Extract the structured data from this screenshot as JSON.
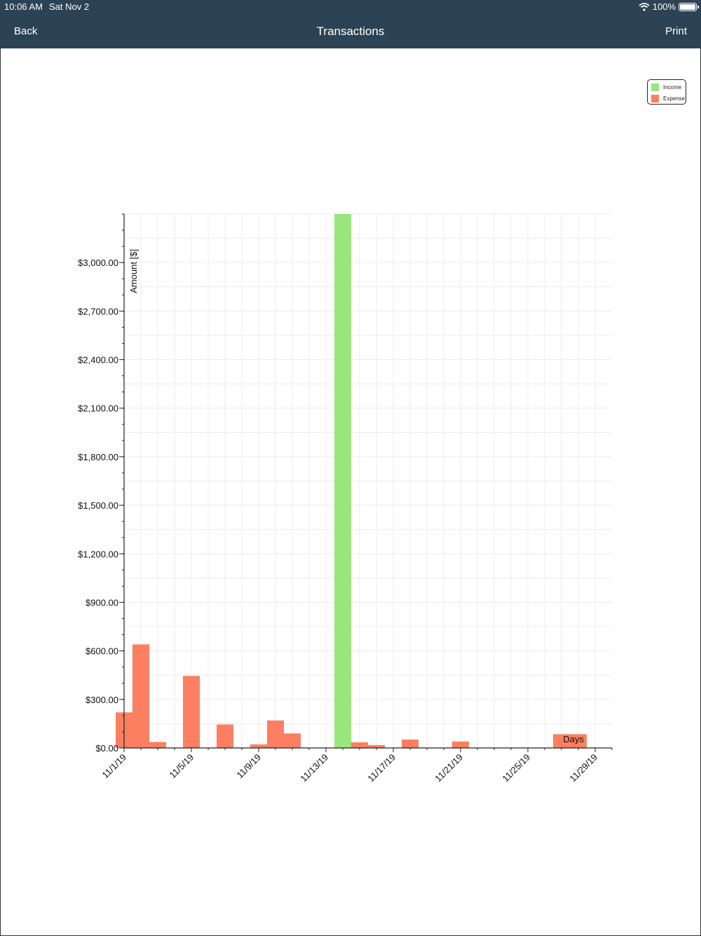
{
  "status": {
    "time": "10:06 AM",
    "date": "Sat Nov 2",
    "battery": "100%"
  },
  "nav": {
    "back_label": "Back",
    "title": "Transactions",
    "print_label": "Print"
  },
  "colors": {
    "income": "#98e67c",
    "expense": "#fd7f61",
    "navbar": "#2c4356"
  },
  "chart_data": {
    "type": "bar",
    "xlabel": "Days",
    "ylabel": "Amount [$]",
    "ylim": [
      0,
      3300
    ],
    "y_ticks": [
      0,
      300,
      600,
      900,
      1200,
      1500,
      1800,
      2100,
      2400,
      2700,
      3000
    ],
    "y_tick_labels": [
      "$0.00",
      "$300.00",
      "$600.00",
      "$900.00",
      "$1,200.00",
      "$1,500.00",
      "$1,800.00",
      "$2,100.00",
      "$2,400.00",
      "$2,700.00",
      "$3,000.00"
    ],
    "x_tick_labels": [
      "11/1/19",
      "11/5/19",
      "11/9/19",
      "11/13/19",
      "11/17/19",
      "11/21/19",
      "11/25/19",
      "11/29/19"
    ],
    "x_tick_dates": [
      "2019-11-01",
      "2019-11-05",
      "2019-11-09",
      "2019-11-13",
      "2019-11-17",
      "2019-11-21",
      "2019-11-25",
      "2019-11-29"
    ],
    "grid": true,
    "legend_position": "top-right",
    "series": [
      {
        "name": "Income",
        "points": [
          {
            "date": "2019-11-14",
            "value": 3300
          }
        ]
      },
      {
        "name": "Expense",
        "points": [
          {
            "date": "2019-11-01",
            "value": 220
          },
          {
            "date": "2019-11-02",
            "value": 640
          },
          {
            "date": "2019-11-03",
            "value": 37
          },
          {
            "date": "2019-11-05",
            "value": 445
          },
          {
            "date": "2019-11-07",
            "value": 145
          },
          {
            "date": "2019-11-09",
            "value": 22
          },
          {
            "date": "2019-11-10",
            "value": 170
          },
          {
            "date": "2019-11-11",
            "value": 90
          },
          {
            "date": "2019-11-15",
            "value": 35
          },
          {
            "date": "2019-11-16",
            "value": 18
          },
          {
            "date": "2019-11-18",
            "value": 52
          },
          {
            "date": "2019-11-21",
            "value": 40
          },
          {
            "date": "2019-11-27",
            "value": 85
          },
          {
            "date": "2019-11-28",
            "value": 85
          }
        ]
      }
    ]
  }
}
